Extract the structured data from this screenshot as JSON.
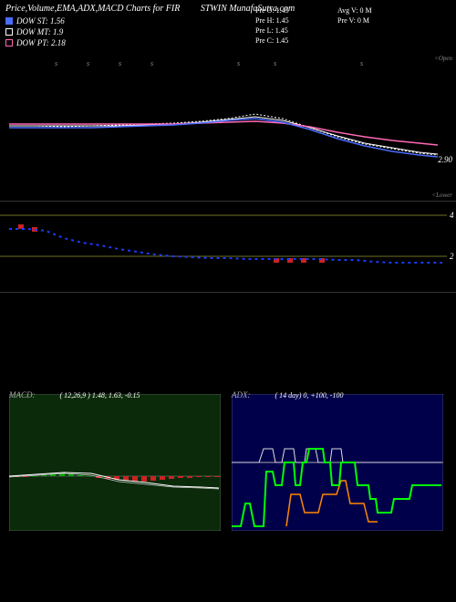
{
  "header": {
    "title_left": "Price,Volume,EMA,ADX,MACD Charts for FIR",
    "title_right": "STWIN  MunafaSutra.com",
    "legend": [
      {
        "marker": "blue",
        "label": "DOW ST: 1.56"
      },
      {
        "marker": "white",
        "label": "DOW MT: 1.9"
      },
      {
        "marker": "pink",
        "label": "DOW PT: 2.18"
      }
    ],
    "ohlc": {
      "o": "Pre    O: 1.45",
      "h": "Pre    H: 1.45",
      "l": "Pre    L: 1.45",
      "c": "Pre    C: 1.45"
    },
    "right_stats": {
      "avg": "Avg V: 0  M",
      "pre": "Pre   V: 0  M"
    }
  },
  "price_panel": {
    "type": "line",
    "background": "#000000",
    "ylabel_top": "<Open",
    "ylabel_bot": "<Lower",
    "last_label": "2.90",
    "xticks": [
      "s",
      "s",
      "s",
      "s",
      "s",
      "s",
      "s"
    ],
    "xtick_positions": [
      60,
      95,
      130,
      165,
      260,
      300,
      395
    ],
    "series": {
      "dotted_white": {
        "color": "#ffffff",
        "dash": "2,2",
        "width": 1,
        "points": [
          [
            10,
            78
          ],
          [
            40,
            78
          ],
          [
            70,
            79
          ],
          [
            100,
            78
          ],
          [
            130,
            77
          ],
          [
            160,
            76
          ],
          [
            190,
            75
          ],
          [
            220,
            73
          ],
          [
            250,
            70
          ],
          [
            280,
            65
          ],
          [
            310,
            70
          ],
          [
            340,
            80
          ],
          [
            370,
            90
          ],
          [
            400,
            98
          ],
          [
            430,
            103
          ],
          [
            460,
            108
          ],
          [
            480,
            110
          ]
        ]
      },
      "ema_blue": {
        "color": "#4a6cff",
        "dash": "",
        "width": 1.5,
        "points": [
          [
            10,
            80
          ],
          [
            40,
            80
          ],
          [
            70,
            80
          ],
          [
            100,
            80
          ],
          [
            130,
            79
          ],
          [
            160,
            78
          ],
          [
            190,
            77
          ],
          [
            220,
            75
          ],
          [
            250,
            72
          ],
          [
            280,
            70
          ],
          [
            310,
            74
          ],
          [
            340,
            82
          ],
          [
            370,
            92
          ],
          [
            400,
            100
          ],
          [
            430,
            106
          ],
          [
            460,
            110
          ],
          [
            480,
            112
          ]
        ]
      },
      "ema_white": {
        "color": "#ffffff",
        "dash": "",
        "width": 1,
        "points": [
          [
            10,
            78
          ],
          [
            40,
            78
          ],
          [
            70,
            78
          ],
          [
            100,
            78
          ],
          [
            130,
            78
          ],
          [
            160,
            77
          ],
          [
            190,
            76
          ],
          [
            220,
            74
          ],
          [
            250,
            71
          ],
          [
            280,
            68
          ],
          [
            310,
            72
          ],
          [
            340,
            80
          ],
          [
            370,
            89
          ],
          [
            400,
            97
          ],
          [
            430,
            102
          ],
          [
            460,
            107
          ],
          [
            480,
            109
          ]
        ]
      },
      "ema_pink": {
        "color": "#ff69b4",
        "dash": "",
        "width": 1.5,
        "points": [
          [
            10,
            76
          ],
          [
            40,
            76
          ],
          [
            70,
            76
          ],
          [
            100,
            76
          ],
          [
            130,
            76
          ],
          [
            160,
            76
          ],
          [
            190,
            76
          ],
          [
            220,
            75
          ],
          [
            250,
            74
          ],
          [
            280,
            73
          ],
          [
            310,
            75
          ],
          [
            340,
            79
          ],
          [
            370,
            85
          ],
          [
            400,
            90
          ],
          [
            430,
            94
          ],
          [
            460,
            97
          ],
          [
            480,
            99
          ]
        ]
      }
    }
  },
  "vol_panel": {
    "type": "scatter",
    "grid_lines": [
      {
        "y": 15,
        "color": "#999933",
        "label": "4"
      },
      {
        "y": 60,
        "color": "#999933",
        "label": "2"
      }
    ],
    "red_bars": [
      {
        "x": 20,
        "y": 25
      },
      {
        "x": 35,
        "y": 28
      },
      {
        "x": 300,
        "y": 62
      },
      {
        "x": 315,
        "y": 62
      },
      {
        "x": 330,
        "y": 62
      },
      {
        "x": 350,
        "y": 62
      }
    ],
    "red_color": "#cc2222",
    "blue_dash": {
      "color": "#1a3aff",
      "width": 2,
      "dash": "3,4",
      "points": [
        [
          10,
          30
        ],
        [
          30,
          30
        ],
        [
          50,
          32
        ],
        [
          70,
          40
        ],
        [
          90,
          45
        ],
        [
          110,
          48
        ],
        [
          130,
          52
        ],
        [
          150,
          55
        ],
        [
          170,
          58
        ],
        [
          190,
          60
        ],
        [
          210,
          61
        ],
        [
          230,
          62
        ],
        [
          250,
          62
        ],
        [
          270,
          63
        ],
        [
          290,
          63
        ],
        [
          310,
          63
        ],
        [
          330,
          63
        ],
        [
          350,
          63
        ],
        [
          370,
          64
        ],
        [
          390,
          64
        ],
        [
          410,
          66
        ],
        [
          430,
          67
        ],
        [
          450,
          67
        ],
        [
          470,
          67
        ],
        [
          485,
          67
        ]
      ]
    }
  },
  "macd": {
    "title": "MACD:",
    "params": "( 12,26,9 ) 1.48,  1.63,  -0.15",
    "bg": "#0a2a0a",
    "zero_y": 90,
    "signal": {
      "color": "#ffffff",
      "points": [
        [
          0,
          90
        ],
        [
          30,
          88
        ],
        [
          60,
          86
        ],
        [
          90,
          87
        ],
        [
          120,
          94
        ],
        [
          150,
          97
        ],
        [
          180,
          101
        ],
        [
          210,
          102
        ],
        [
          230,
          103
        ]
      ]
    },
    "macd_line": {
      "color": "#cccccc",
      "points": [
        [
          0,
          91
        ],
        [
          30,
          89
        ],
        [
          60,
          87
        ],
        [
          90,
          89
        ],
        [
          120,
          96
        ],
        [
          150,
          99
        ],
        [
          180,
          102
        ],
        [
          210,
          103
        ],
        [
          230,
          104
        ]
      ]
    },
    "hist": {
      "color_pos": "#00aa00",
      "color_neg": "#cc2222",
      "bars": [
        [
          5,
          -1
        ],
        [
          15,
          -1
        ],
        [
          25,
          0
        ],
        [
          35,
          1
        ],
        [
          45,
          2
        ],
        [
          55,
          3
        ],
        [
          65,
          2
        ],
        [
          75,
          1
        ],
        [
          85,
          0
        ],
        [
          95,
          -2
        ],
        [
          105,
          -3
        ],
        [
          115,
          -4
        ],
        [
          125,
          -5
        ],
        [
          135,
          -6
        ],
        [
          145,
          -6
        ],
        [
          155,
          -5
        ],
        [
          165,
          -4
        ],
        [
          175,
          -3
        ],
        [
          185,
          -2
        ],
        [
          195,
          -2
        ],
        [
          205,
          -1
        ],
        [
          215,
          -1
        ],
        [
          225,
          -1
        ]
      ]
    }
  },
  "adx": {
    "title": "ADX:",
    "params": "( 14   day) 0,  +100,  -100",
    "bg": "#00004a",
    "grid_y": 75,
    "green": {
      "color": "#00ff00",
      "width": 2,
      "points": [
        [
          0,
          145
        ],
        [
          10,
          145
        ],
        [
          15,
          120
        ],
        [
          20,
          120
        ],
        [
          25,
          145
        ],
        [
          30,
          145
        ],
        [
          35,
          145
        ],
        [
          38,
          85
        ],
        [
          45,
          85
        ],
        [
          48,
          100
        ],
        [
          55,
          100
        ],
        [
          58,
          75
        ],
        [
          68,
          75
        ],
        [
          70,
          100
        ],
        [
          75,
          100
        ],
        [
          78,
          75
        ],
        [
          82,
          75
        ],
        [
          85,
          60
        ],
        [
          100,
          60
        ],
        [
          102,
          75
        ],
        [
          108,
          75
        ],
        [
          110,
          100
        ],
        [
          118,
          100
        ],
        [
          120,
          75
        ],
        [
          135,
          75
        ],
        [
          138,
          100
        ],
        [
          150,
          100
        ],
        [
          152,
          115
        ],
        [
          158,
          115
        ],
        [
          160,
          130
        ],
        [
          175,
          130
        ],
        [
          178,
          115
        ],
        [
          195,
          115
        ],
        [
          198,
          100
        ],
        [
          230,
          100
        ]
      ]
    },
    "orange": {
      "color": "#ff8800",
      "width": 1.5,
      "points": [
        [
          60,
          145
        ],
        [
          65,
          110
        ],
        [
          75,
          110
        ],
        [
          80,
          130
        ],
        [
          95,
          130
        ],
        [
          100,
          110
        ],
        [
          115,
          110
        ],
        [
          120,
          95
        ],
        [
          125,
          95
        ],
        [
          130,
          120
        ],
        [
          145,
          120
        ],
        [
          150,
          140
        ],
        [
          160,
          140
        ]
      ]
    },
    "white": {
      "color": "#dddddd",
      "width": 1,
      "points": [
        [
          0,
          75
        ],
        [
          30,
          75
        ],
        [
          35,
          60
        ],
        [
          45,
          60
        ],
        [
          48,
          75
        ],
        [
          55,
          75
        ],
        [
          58,
          60
        ],
        [
          68,
          60
        ],
        [
          70,
          75
        ],
        [
          80,
          75
        ],
        [
          82,
          60
        ],
        [
          92,
          60
        ],
        [
          95,
          75
        ],
        [
          108,
          75
        ],
        [
          110,
          60
        ],
        [
          120,
          60
        ],
        [
          122,
          75
        ],
        [
          230,
          75
        ]
      ]
    }
  }
}
